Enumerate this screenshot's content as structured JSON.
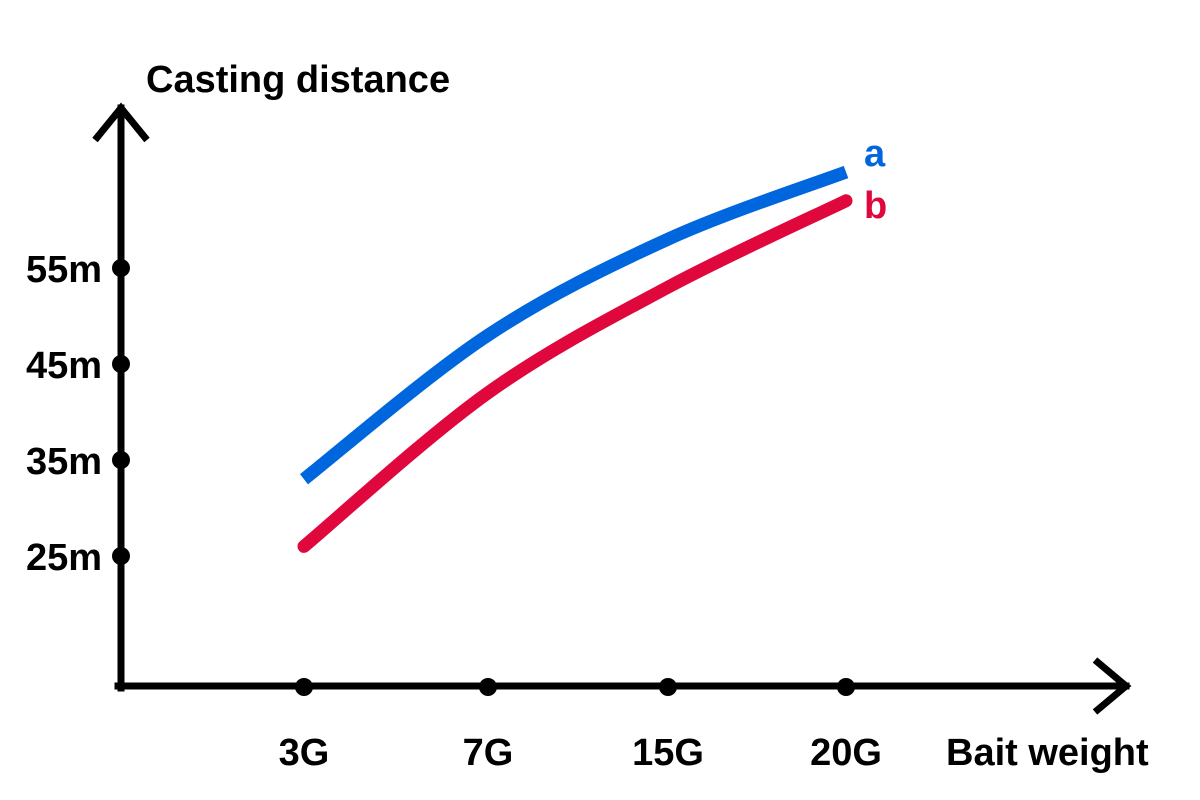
{
  "chart_data": {
    "type": "line",
    "xlabel": "Bait weight",
    "ylabel": "Casting distance",
    "categories": [
      "3G",
      "7G",
      "15G",
      "20G"
    ],
    "y_ticks": [
      {
        "label": "25m",
        "value": 25
      },
      {
        "label": "35m",
        "value": 35
      },
      {
        "label": "45m",
        "value": 45
      },
      {
        "label": "55m",
        "value": 55
      }
    ],
    "ylim": [
      11,
      71
    ],
    "grid": false,
    "series": [
      {
        "name": "a",
        "color": "#0066dd",
        "values": [
          33,
          48,
          58,
          65
        ]
      },
      {
        "name": "b",
        "color": "#e0073d",
        "values": [
          26,
          42,
          53,
          62
        ]
      }
    ]
  }
}
